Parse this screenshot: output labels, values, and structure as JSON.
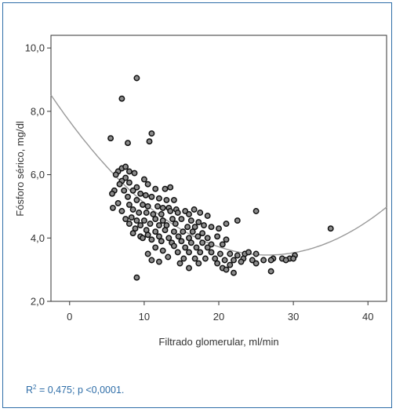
{
  "chart_data": {
    "type": "scatter",
    "xlabel": "Filtrado glomerular, ml/min",
    "ylabel": "Fósforo sérico, mg/dl",
    "xlim": [
      -2.5,
      42.5
    ],
    "ylim": [
      2.0,
      10.4
    ],
    "x_ticks": [
      0,
      10,
      20,
      30,
      40
    ],
    "x_tick_labels": [
      "0",
      "10",
      "20",
      "30",
      "40"
    ],
    "y_ticks": [
      2,
      4,
      6,
      8,
      10
    ],
    "y_tick_labels": [
      "2,0",
      "4,0",
      "6,0",
      "8,0",
      "10,0"
    ],
    "grid": false,
    "points": [
      [
        9.0,
        9.05
      ],
      [
        7.0,
        8.4
      ],
      [
        5.5,
        7.15
      ],
      [
        11.0,
        7.3
      ],
      [
        10.7,
        7.05
      ],
      [
        7.8,
        7.0
      ],
      [
        7.0,
        6.2
      ],
      [
        7.5,
        6.25
      ],
      [
        6.5,
        6.1
      ],
      [
        6.2,
        6.0
      ],
      [
        8.0,
        6.1
      ],
      [
        8.7,
        6.05
      ],
      [
        7.5,
        5.9
      ],
      [
        7.0,
        5.8
      ],
      [
        6.7,
        5.7
      ],
      [
        8.0,
        5.75
      ],
      [
        10.0,
        5.85
      ],
      [
        9.0,
        5.6
      ],
      [
        10.5,
        5.7
      ],
      [
        11.5,
        5.55
      ],
      [
        12.8,
        5.55
      ],
      [
        13.5,
        5.6
      ],
      [
        8.5,
        5.5
      ],
      [
        7.3,
        5.5
      ],
      [
        6.0,
        5.5
      ],
      [
        5.7,
        5.4
      ],
      [
        9.5,
        5.4
      ],
      [
        10.2,
        5.35
      ],
      [
        11.0,
        5.3
      ],
      [
        12.0,
        5.25
      ],
      [
        13.0,
        5.2
      ],
      [
        14.0,
        5.2
      ],
      [
        7.8,
        5.3
      ],
      [
        9.0,
        5.2
      ],
      [
        6.5,
        5.1
      ],
      [
        8.0,
        5.05
      ],
      [
        9.8,
        5.05
      ],
      [
        10.5,
        5.0
      ],
      [
        11.8,
        5.0
      ],
      [
        12.5,
        4.95
      ],
      [
        13.3,
        4.95
      ],
      [
        14.3,
        4.9
      ],
      [
        5.8,
        4.95
      ],
      [
        7.0,
        4.85
      ],
      [
        8.5,
        4.9
      ],
      [
        9.3,
        4.8
      ],
      [
        10.3,
        4.8
      ],
      [
        11.2,
        4.75
      ],
      [
        12.3,
        4.75
      ],
      [
        13.5,
        4.85
      ],
      [
        14.5,
        4.8
      ],
      [
        15.5,
        4.85
      ],
      [
        16.7,
        4.9
      ],
      [
        16.0,
        4.75
      ],
      [
        17.5,
        4.8
      ],
      [
        18.5,
        4.7
      ],
      [
        25.0,
        4.85
      ],
      [
        22.5,
        4.55
      ],
      [
        21.0,
        4.45
      ],
      [
        35.0,
        4.3
      ],
      [
        7.5,
        4.6
      ],
      [
        8.3,
        4.65
      ],
      [
        9.0,
        4.55
      ],
      [
        10.0,
        4.55
      ],
      [
        11.5,
        4.6
      ],
      [
        12.5,
        4.55
      ],
      [
        13.8,
        4.6
      ],
      [
        15.0,
        4.6
      ],
      [
        16.3,
        4.55
      ],
      [
        17.3,
        4.5
      ],
      [
        8.0,
        4.45
      ],
      [
        9.5,
        4.4
      ],
      [
        10.8,
        4.45
      ],
      [
        12.0,
        4.4
      ],
      [
        13.0,
        4.4
      ],
      [
        14.2,
        4.45
      ],
      [
        15.8,
        4.35
      ],
      [
        16.8,
        4.35
      ],
      [
        18.0,
        4.4
      ],
      [
        19.0,
        4.35
      ],
      [
        20.0,
        4.3
      ],
      [
        8.8,
        4.3
      ],
      [
        10.3,
        4.25
      ],
      [
        11.5,
        4.2
      ],
      [
        12.8,
        4.25
      ],
      [
        14.0,
        4.2
      ],
      [
        15.2,
        4.2
      ],
      [
        16.5,
        4.2
      ],
      [
        17.8,
        4.15
      ],
      [
        9.5,
        4.05
      ],
      [
        8.5,
        4.15
      ],
      [
        10.5,
        4.1
      ],
      [
        12.0,
        4.05
      ],
      [
        13.3,
        4.0
      ],
      [
        14.6,
        4.05
      ],
      [
        16.0,
        4.0
      ],
      [
        17.2,
        4.05
      ],
      [
        18.5,
        4.0
      ],
      [
        19.8,
        4.05
      ],
      [
        21.0,
        3.95
      ],
      [
        9.8,
        4.0
      ],
      [
        11.0,
        3.95
      ],
      [
        12.3,
        3.9
      ],
      [
        13.7,
        3.85
      ],
      [
        15.0,
        3.9
      ],
      [
        16.3,
        3.85
      ],
      [
        17.8,
        3.85
      ],
      [
        19.0,
        3.8
      ],
      [
        20.5,
        3.8
      ],
      [
        14.0,
        3.75
      ],
      [
        15.5,
        3.7
      ],
      [
        17.0,
        3.7
      ],
      [
        18.5,
        3.7
      ],
      [
        11.5,
        3.7
      ],
      [
        12.5,
        3.6
      ],
      [
        14.5,
        3.55
      ],
      [
        16.0,
        3.55
      ],
      [
        17.5,
        3.55
      ],
      [
        19.0,
        3.55
      ],
      [
        20.2,
        3.5
      ],
      [
        21.5,
        3.5
      ],
      [
        22.5,
        3.45
      ],
      [
        23.5,
        3.5
      ],
      [
        24.0,
        3.55
      ],
      [
        25.0,
        3.5
      ],
      [
        10.5,
        3.5
      ],
      [
        13.2,
        3.4
      ],
      [
        15.3,
        3.35
      ],
      [
        16.8,
        3.35
      ],
      [
        18.2,
        3.35
      ],
      [
        19.5,
        3.35
      ],
      [
        20.8,
        3.3
      ],
      [
        22.0,
        3.3
      ],
      [
        23.3,
        3.35
      ],
      [
        24.5,
        3.3
      ],
      [
        26.0,
        3.3
      ],
      [
        27.3,
        3.35
      ],
      [
        28.5,
        3.35
      ],
      [
        29.5,
        3.35
      ],
      [
        30.2,
        3.45
      ],
      [
        12.0,
        3.25
      ],
      [
        14.8,
        3.2
      ],
      [
        17.3,
        3.2
      ],
      [
        19.8,
        3.2
      ],
      [
        21.5,
        3.15
      ],
      [
        23.0,
        3.25
      ],
      [
        25.0,
        3.2
      ],
      [
        27.0,
        3.3
      ],
      [
        29.0,
        3.3
      ],
      [
        30.0,
        3.35
      ],
      [
        11.0,
        3.3
      ],
      [
        16.0,
        3.05
      ],
      [
        20.5,
        3.05
      ],
      [
        21.0,
        3.0
      ],
      [
        22.0,
        2.9
      ],
      [
        27.0,
        2.95
      ],
      [
        9.0,
        2.75
      ]
    ],
    "fit": {
      "type": "quadratic",
      "x": [
        -2.5,
        0,
        5,
        10,
        15,
        20,
        25,
        30,
        35,
        40,
        42.5
      ],
      "y": [
        8.5,
        7.7,
        6.2,
        5.1,
        4.3,
        3.8,
        3.55,
        3.5,
        3.75,
        4.3,
        5.25
      ]
    }
  },
  "caption": {
    "r_label": "R",
    "r_exponent": "2",
    "rest": " = 0,475; p <0,0001."
  }
}
